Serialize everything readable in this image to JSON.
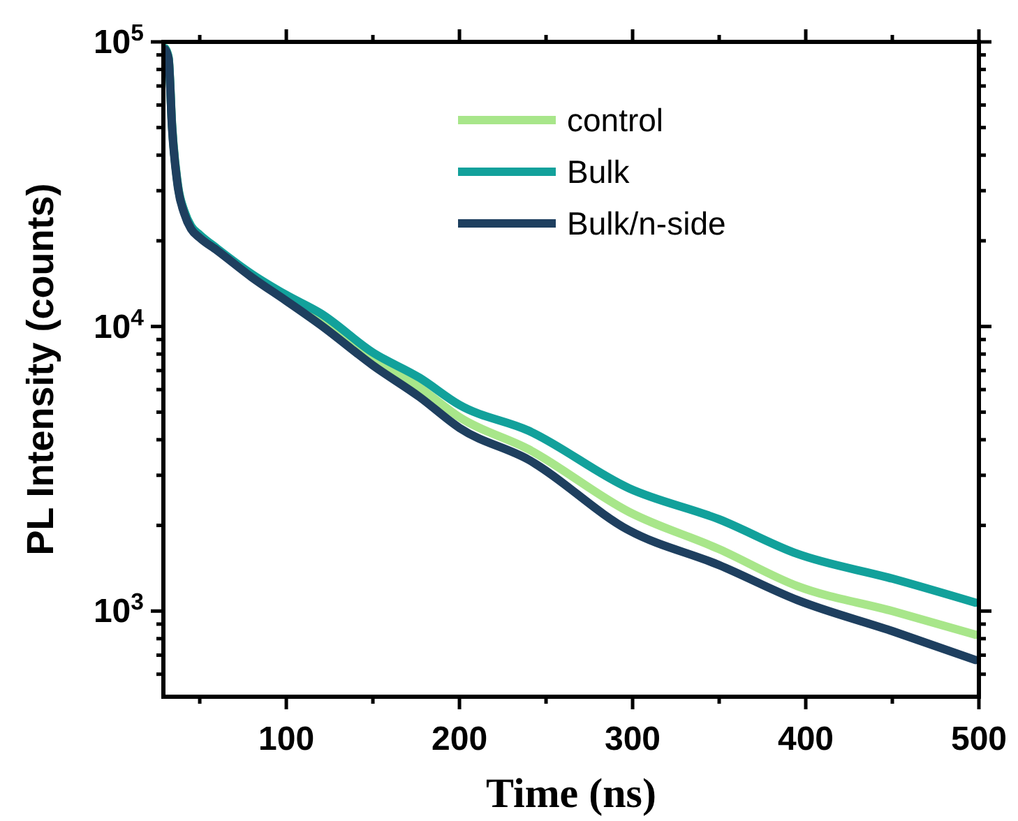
{
  "chart_data": {
    "type": "line",
    "xlabel": "Time (ns)",
    "ylabel": "PL Intensity (counts)",
    "log": "y",
    "legend": "top right",
    "grid": false,
    "marker": "none",
    "line_style": "solid",
    "xlim": [
      29,
      500
    ],
    "ylim": [
      500,
      100000
    ],
    "xticks": [
      {
        "value": 50,
        "label": null
      },
      100,
      {
        "value": 150,
        "label": null
      },
      200,
      {
        "value": 250,
        "label": null
      },
      300,
      {
        "value": 350,
        "label": null
      },
      400,
      {
        "value": 450,
        "label": null
      },
      500
    ],
    "yticks": [
      {
        "value": 600,
        "label": null
      },
      {
        "value": 700,
        "label": null
      },
      {
        "value": 800,
        "label": null
      },
      {
        "value": 900,
        "label": null
      },
      {
        "value": 1000,
        "label": "10$^{3}$"
      },
      {
        "value": 2000,
        "label": null
      },
      {
        "value": 3000,
        "label": null
      },
      {
        "value": 4000,
        "label": null
      },
      {
        "value": 5000,
        "label": null
      },
      {
        "value": 6000,
        "label": null
      },
      {
        "value": 7000,
        "label": null
      },
      {
        "value": 8000,
        "label": null
      },
      {
        "value": 9000,
        "label": null
      },
      {
        "value": 10000,
        "label": "10$^{4}$"
      },
      {
        "value": 20000,
        "label": null
      },
      {
        "value": 30000,
        "label": null
      },
      {
        "value": 40000,
        "label": null
      },
      {
        "value": 50000,
        "label": null
      },
      {
        "value": 60000,
        "label": null
      },
      {
        "value": 70000,
        "label": null
      },
      {
        "value": 80000,
        "label": null
      },
      {
        "value": 90000,
        "label": null
      },
      {
        "value": 100000,
        "label": "10$^{5}$"
      }
    ],
    "x": [
      30,
      32,
      34,
      37.5,
      41,
      45,
      50,
      60,
      80,
      100,
      120,
      150,
      177,
      200,
      240,
      298,
      350,
      395,
      450,
      498
    ],
    "series": [
      {
        "name": "control",
        "color": "#a8e68a",
        "values": [
          95000,
          88000,
          51000,
          31000,
          25500,
          22500,
          21000,
          18700,
          15100,
          12600,
          10600,
          7700,
          6100,
          4800,
          3700,
          2230,
          1650,
          1225,
          1000,
          826
        ]
      },
      {
        "name": "Bulk",
        "color": "#12a19b",
        "values": [
          95000,
          88000,
          51000,
          31000,
          25500,
          22500,
          21000,
          18800,
          15300,
          12900,
          11100,
          8100,
          6600,
          5300,
          4300,
          2700,
          2100,
          1590,
          1300,
          1070
        ]
      },
      {
        "name": "Bulk/n-side",
        "color": "#1e3f5f",
        "values": [
          94000,
          87000,
          50000,
          30500,
          25000,
          22000,
          20500,
          18500,
          14900,
          12300,
          10100,
          7300,
          5650,
          4400,
          3400,
          1920,
          1450,
          1094,
          850,
          673
        ]
      }
    ]
  }
}
